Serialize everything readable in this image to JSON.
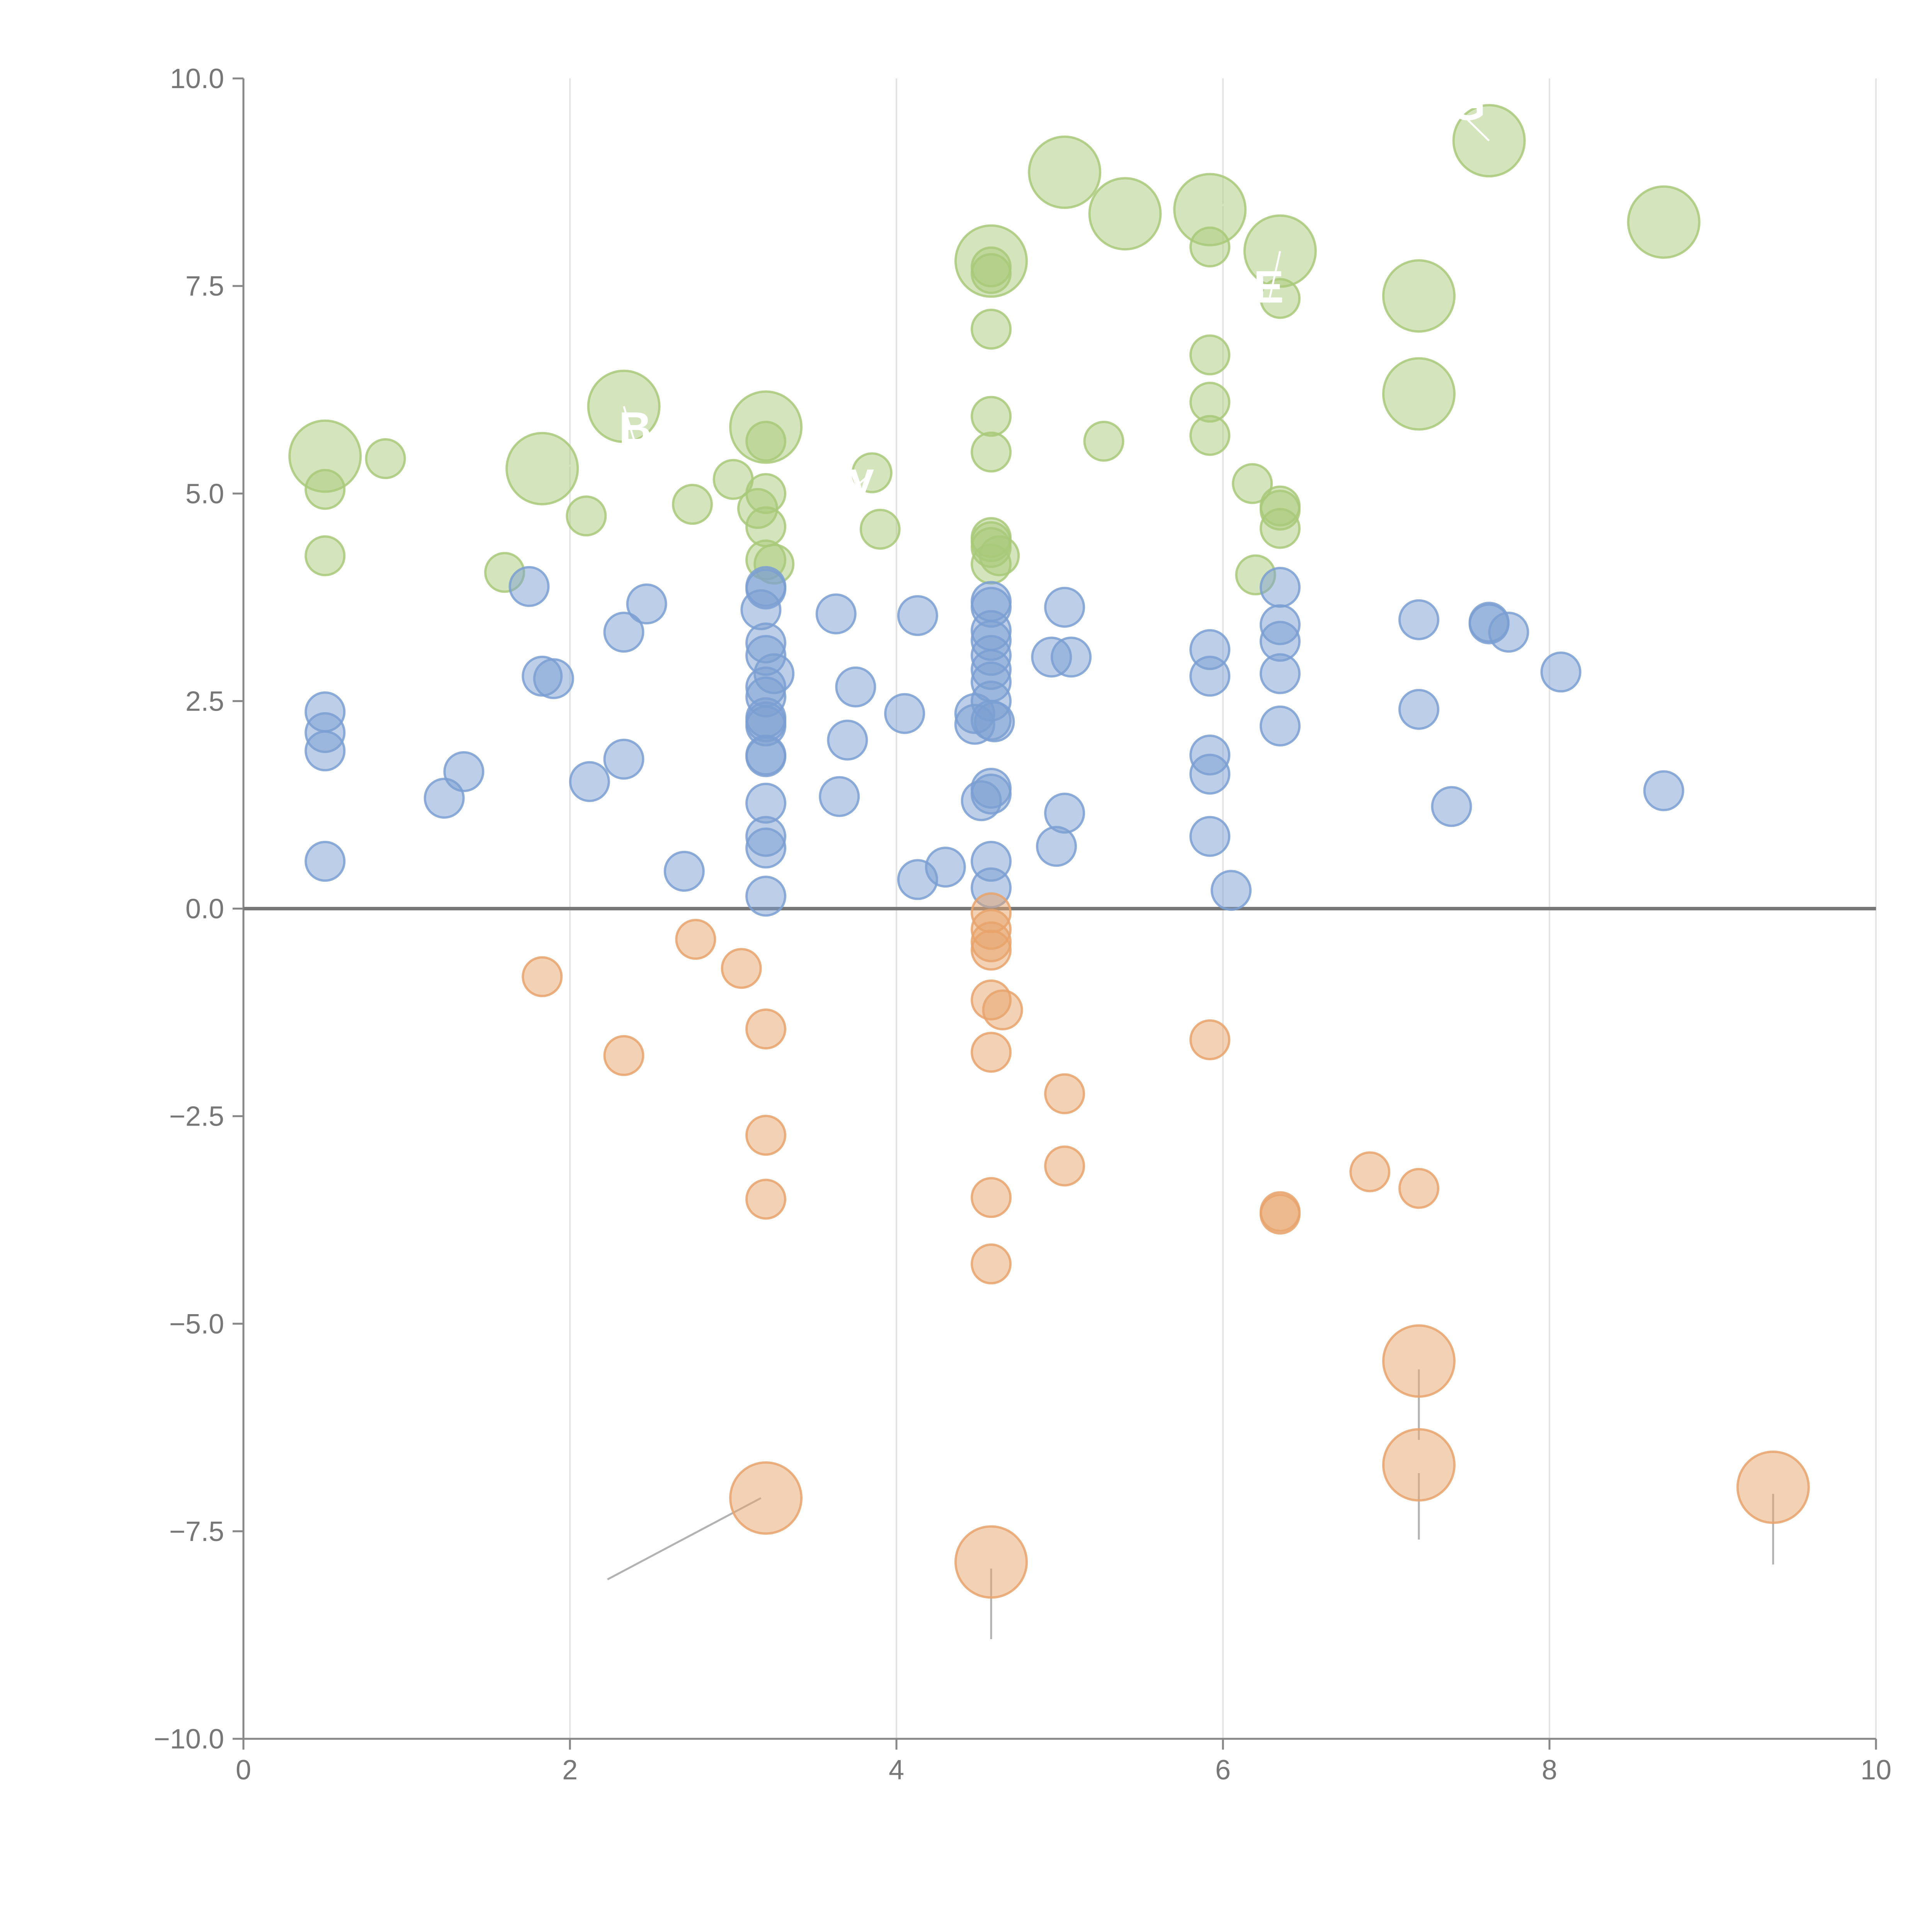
{
  "chart_data": {
    "type": "scatter",
    "title": "",
    "xlabel": "",
    "ylabel": "",
    "xlim": [
      0,
      10
    ],
    "ylim": [
      -10,
      10
    ],
    "x_ticks": [
      0,
      2,
      4,
      6,
      8,
      10
    ],
    "y_ticks": [
      -10,
      -7.5,
      -5,
      -2.5,
      0,
      2.5,
      5,
      7.5,
      10
    ],
    "x_tick_labels": [
      "0",
      "2",
      "4",
      "6",
      "8",
      "10"
    ],
    "y_tick_labels": [
      "−10.0",
      "−7.5",
      "−5.0",
      "−2.5",
      "0.0",
      "2.5",
      "5.0",
      "7.5",
      "10.0"
    ],
    "grid": "vertical",
    "zero_line": true,
    "colors": {
      "green": "#a9c97a",
      "blue": "#7b9fd2",
      "orange": "#e8a36c",
      "axis": "#888888",
      "grid": "#e4e4e4",
      "zero": "#777777",
      "leader": "#aaaaaa"
    },
    "series": [
      {
        "name": "green",
        "color": "#a9c97a",
        "points": [
          {
            "x": 0.5,
            "y": 5.45,
            "r": "large"
          },
          {
            "x": 0.5,
            "y": 5.05
          },
          {
            "x": 0.5,
            "y": 4.25
          },
          {
            "x": 0.87,
            "y": 5.42
          },
          {
            "x": 1.6,
            "y": 4.05
          },
          {
            "x": 1.83,
            "y": 5.3,
            "r": "large"
          },
          {
            "x": 2.1,
            "y": 4.73
          },
          {
            "x": 2.33,
            "y": 6.05,
            "r": "large"
          },
          {
            "x": 2.75,
            "y": 4.87
          },
          {
            "x": 3.0,
            "y": 5.17
          },
          {
            "x": 3.15,
            "y": 4.82
          },
          {
            "x": 3.2,
            "y": 5.8,
            "r": "large"
          },
          {
            "x": 3.2,
            "y": 5.63
          },
          {
            "x": 3.2,
            "y": 5.0
          },
          {
            "x": 3.2,
            "y": 4.6
          },
          {
            "x": 3.2,
            "y": 4.2
          },
          {
            "x": 3.25,
            "y": 4.15
          },
          {
            "x": 3.85,
            "y": 5.25
          },
          {
            "x": 3.9,
            "y": 4.57
          },
          {
            "x": 4.58,
            "y": 7.8,
            "r": "large"
          },
          {
            "x": 4.58,
            "y": 7.73
          },
          {
            "x": 4.58,
            "y": 7.65
          },
          {
            "x": 4.58,
            "y": 6.98
          },
          {
            "x": 4.58,
            "y": 5.93
          },
          {
            "x": 4.58,
            "y": 5.5
          },
          {
            "x": 4.58,
            "y": 4.47
          },
          {
            "x": 4.58,
            "y": 4.42
          },
          {
            "x": 4.58,
            "y": 4.35
          },
          {
            "x": 4.58,
            "y": 4.15
          },
          {
            "x": 4.63,
            "y": 4.25
          },
          {
            "x": 5.03,
            "y": 8.87,
            "r": "large"
          },
          {
            "x": 5.27,
            "y": 5.63
          },
          {
            "x": 5.4,
            "y": 8.37,
            "r": "large"
          },
          {
            "x": 5.92,
            "y": 8.42,
            "r": "large"
          },
          {
            "x": 5.92,
            "y": 7.97
          },
          {
            "x": 5.92,
            "y": 6.67
          },
          {
            "x": 5.92,
            "y": 6.1
          },
          {
            "x": 5.92,
            "y": 5.7
          },
          {
            "x": 6.18,
            "y": 5.12
          },
          {
            "x": 6.2,
            "y": 4.02
          },
          {
            "x": 6.35,
            "y": 7.92,
            "r": "large"
          },
          {
            "x": 6.35,
            "y": 7.35
          },
          {
            "x": 6.35,
            "y": 4.85
          },
          {
            "x": 6.35,
            "y": 4.8
          },
          {
            "x": 6.35,
            "y": 4.58
          },
          {
            "x": 7.2,
            "y": 7.38,
            "r": "large"
          },
          {
            "x": 7.2,
            "y": 6.2,
            "r": "large"
          },
          {
            "x": 7.63,
            "y": 9.25,
            "r": "large"
          },
          {
            "x": 8.7,
            "y": 8.27,
            "r": "large"
          }
        ]
      },
      {
        "name": "blue",
        "color": "#7b9fd2",
        "points": [
          {
            "x": 0.5,
            "y": 2.37
          },
          {
            "x": 0.5,
            "y": 2.12
          },
          {
            "x": 0.5,
            "y": 1.9
          },
          {
            "x": 0.5,
            "y": 0.57
          },
          {
            "x": 1.23,
            "y": 1.33
          },
          {
            "x": 1.35,
            "y": 1.65
          },
          {
            "x": 1.75,
            "y": 3.88
          },
          {
            "x": 1.83,
            "y": 2.8
          },
          {
            "x": 1.9,
            "y": 2.77
          },
          {
            "x": 2.12,
            "y": 1.53
          },
          {
            "x": 2.33,
            "y": 3.33
          },
          {
            "x": 2.33,
            "y": 1.8
          },
          {
            "x": 2.47,
            "y": 3.67
          },
          {
            "x": 2.7,
            "y": 0.45
          },
          {
            "x": 3.17,
            "y": 3.6
          },
          {
            "x": 3.2,
            "y": 3.88
          },
          {
            "x": 3.2,
            "y": 3.85
          },
          {
            "x": 3.2,
            "y": 3.2
          },
          {
            "x": 3.2,
            "y": 3.05
          },
          {
            "x": 3.25,
            "y": 2.83
          },
          {
            "x": 3.2,
            "y": 2.67
          },
          {
            "x": 3.2,
            "y": 2.55
          },
          {
            "x": 3.2,
            "y": 2.3
          },
          {
            "x": 3.2,
            "y": 2.25
          },
          {
            "x": 3.2,
            "y": 2.2
          },
          {
            "x": 3.2,
            "y": 1.85
          },
          {
            "x": 3.2,
            "y": 1.83
          },
          {
            "x": 3.2,
            "y": 1.27
          },
          {
            "x": 3.2,
            "y": 0.87
          },
          {
            "x": 3.2,
            "y": 0.73
          },
          {
            "x": 3.2,
            "y": 0.15
          },
          {
            "x": 3.63,
            "y": 3.55
          },
          {
            "x": 3.65,
            "y": 1.35
          },
          {
            "x": 3.7,
            "y": 2.03
          },
          {
            "x": 3.75,
            "y": 2.67
          },
          {
            "x": 4.05,
            "y": 2.35
          },
          {
            "x": 4.13,
            "y": 3.53
          },
          {
            "x": 4.13,
            "y": 0.35
          },
          {
            "x": 4.3,
            "y": 0.5
          },
          {
            "x": 4.48,
            "y": 2.35
          },
          {
            "x": 4.48,
            "y": 2.22
          },
          {
            "x": 4.52,
            "y": 1.3
          },
          {
            "x": 4.58,
            "y": 3.7
          },
          {
            "x": 4.58,
            "y": 3.63
          },
          {
            "x": 4.58,
            "y": 3.35
          },
          {
            "x": 4.58,
            "y": 3.23
          },
          {
            "x": 4.58,
            "y": 3.05
          },
          {
            "x": 4.58,
            "y": 2.88
          },
          {
            "x": 4.58,
            "y": 2.73
          },
          {
            "x": 4.58,
            "y": 2.5
          },
          {
            "x": 4.58,
            "y": 2.27
          },
          {
            "x": 4.6,
            "y": 2.25
          },
          {
            "x": 4.58,
            "y": 1.45
          },
          {
            "x": 4.58,
            "y": 1.38
          },
          {
            "x": 4.58,
            "y": 0.57
          },
          {
            "x": 4.58,
            "y": 0.25
          },
          {
            "x": 4.95,
            "y": 3.03
          },
          {
            "x": 5.03,
            "y": 3.63
          },
          {
            "x": 5.07,
            "y": 3.03
          },
          {
            "x": 5.03,
            "y": 1.15
          },
          {
            "x": 4.98,
            "y": 0.75
          },
          {
            "x": 5.92,
            "y": 3.12
          },
          {
            "x": 5.92,
            "y": 2.8
          },
          {
            "x": 5.92,
            "y": 1.85
          },
          {
            "x": 5.92,
            "y": 1.62
          },
          {
            "x": 5.92,
            "y": 0.87
          },
          {
            "x": 6.05,
            "y": 0.22
          },
          {
            "x": 6.35,
            "y": 3.87
          },
          {
            "x": 6.35,
            "y": 3.42
          },
          {
            "x": 6.35,
            "y": 3.22
          },
          {
            "x": 6.35,
            "y": 2.83
          },
          {
            "x": 6.35,
            "y": 2.2
          },
          {
            "x": 7.2,
            "y": 3.48
          },
          {
            "x": 7.2,
            "y": 2.4
          },
          {
            "x": 7.4,
            "y": 1.23
          },
          {
            "x": 7.63,
            "y": 3.45
          },
          {
            "x": 7.63,
            "y": 3.43
          },
          {
            "x": 7.75,
            "y": 3.33
          },
          {
            "x": 8.07,
            "y": 2.85
          },
          {
            "x": 8.7,
            "y": 1.42
          }
        ]
      },
      {
        "name": "orange",
        "color": "#e8a36c",
        "points": [
          {
            "x": 1.83,
            "y": -0.82
          },
          {
            "x": 2.33,
            "y": -1.77
          },
          {
            "x": 2.77,
            "y": -0.37
          },
          {
            "x": 3.05,
            "y": -0.72
          },
          {
            "x": 3.2,
            "y": -1.45
          },
          {
            "x": 3.2,
            "y": -2.73
          },
          {
            "x": 3.2,
            "y": -3.5
          },
          {
            "x": 3.2,
            "y": -7.1,
            "r": "large"
          },
          {
            "x": 4.58,
            "y": -0.05
          },
          {
            "x": 4.58,
            "y": -0.25
          },
          {
            "x": 4.58,
            "y": -0.4
          },
          {
            "x": 4.58,
            "y": -0.5
          },
          {
            "x": 4.58,
            "y": -1.1
          },
          {
            "x": 4.65,
            "y": -1.22
          },
          {
            "x": 4.58,
            "y": -1.73
          },
          {
            "x": 4.58,
            "y": -3.48
          },
          {
            "x": 4.58,
            "y": -4.28
          },
          {
            "x": 4.58,
            "y": -7.87,
            "r": "large"
          },
          {
            "x": 5.03,
            "y": -2.23
          },
          {
            "x": 5.03,
            "y": -3.1
          },
          {
            "x": 5.92,
            "y": -1.58
          },
          {
            "x": 6.35,
            "y": -3.65
          },
          {
            "x": 6.35,
            "y": -3.68
          },
          {
            "x": 6.9,
            "y": -3.17
          },
          {
            "x": 7.2,
            "y": -3.37
          },
          {
            "x": 7.2,
            "y": -5.45,
            "r": "large"
          },
          {
            "x": 7.2,
            "y": -6.7,
            "r": "large"
          },
          {
            "x": 9.37,
            "y": -6.97,
            "r": "large"
          }
        ]
      }
    ],
    "annotations": [
      {
        "text": "G",
        "x": 7.5,
        "y": 9.5,
        "tx": 7.63,
        "ty": 9.25
      },
      {
        "text": "E",
        "x": 6.28,
        "y": 7.3,
        "tx": 6.35,
        "ty": 7.92
      },
      {
        "text": "B",
        "x": 2.4,
        "y": 5.6,
        "tx": 2.33,
        "ty": 6.05
      },
      {
        "text": "oy",
        "x": 3.7,
        "y": 5.0,
        "tx": 3.85,
        "ty": 5.25
      }
    ],
    "leader_lines": [
      {
        "x1": 2.23,
        "y1": -8.08,
        "x2": 3.17,
        "y2": -7.1,
        "color": "#aaaaaa"
      },
      {
        "x1": 4.58,
        "y1": -8.8,
        "x2": 4.58,
        "y2": -7.95,
        "color": "#aaaaaa"
      },
      {
        "x1": 7.2,
        "y1": -6.4,
        "x2": 7.2,
        "y2": -5.55,
        "color": "#aaaaaa"
      },
      {
        "x1": 7.2,
        "y1": -7.6,
        "x2": 7.2,
        "y2": -6.8,
        "color": "#aaaaaa"
      },
      {
        "x1": 9.37,
        "y1": -7.9,
        "x2": 9.37,
        "y2": -7.05,
        "color": "#aaaaaa"
      },
      {
        "x1": 0.5,
        "y1": 5.55,
        "x2": 0.65,
        "y2": 5.75,
        "color": "#ffffff"
      },
      {
        "x1": 1.87,
        "y1": 5.3,
        "x2": 2.05,
        "y2": 5.35,
        "color": "#ffffff"
      },
      {
        "x1": 2.36,
        "y1": 6.15,
        "x2": 2.45,
        "y2": 6.45,
        "color": "#ffffff"
      },
      {
        "x1": 5.0,
        "y1": 8.9,
        "x2": 4.77,
        "y2": 9.0,
        "color": "#ffffff"
      },
      {
        "x1": 5.4,
        "y1": 8.5,
        "x2": 5.37,
        "y2": 8.85,
        "color": "#ffffff"
      },
      {
        "x1": 5.98,
        "y1": 8.45,
        "x2": 6.12,
        "y2": 8.62,
        "color": "#ffffff"
      },
      {
        "x1": 6.3,
        "y1": 7.92,
        "x2": 6.4,
        "y2": 8.1,
        "color": "#ffffff"
      },
      {
        "x1": 7.27,
        "y1": 7.3,
        "x2": 7.15,
        "y2": 7.45,
        "color": "#ffffff"
      },
      {
        "x1": 7.22,
        "y1": 6.2,
        "x2": 7.25,
        "y2": 6.35,
        "color": "#ffffff"
      },
      {
        "x1": 7.7,
        "y1": 9.27,
        "x2": 7.85,
        "y2": 9.3,
        "color": "#ffffff"
      },
      {
        "x1": 8.77,
        "y1": 8.1,
        "x2": 8.7,
        "y2": 8.25,
        "color": "#ffffff"
      }
    ]
  }
}
